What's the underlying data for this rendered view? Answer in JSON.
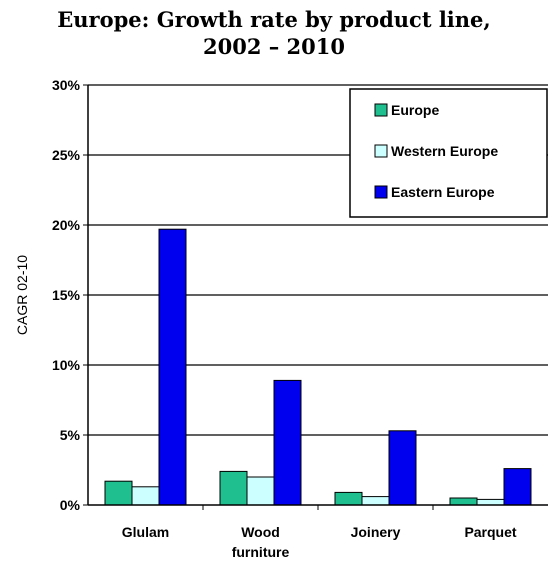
{
  "chart_data": {
    "type": "bar",
    "title_line1": "Europe: Growth rate by product line,",
    "title_line2": "2002 – 2010",
    "xlabel": "",
    "ylabel": "CAGR 02-10",
    "ylim": [
      0,
      30
    ],
    "yticks": [
      "0%",
      "5%",
      "10%",
      "15%",
      "20%",
      "25%",
      "30%"
    ],
    "categories": [
      [
        "Glulam"
      ],
      [
        "Wood",
        "furniture"
      ],
      [
        "Joinery"
      ],
      [
        "Parquet"
      ]
    ],
    "series": [
      {
        "name": "Europe",
        "color": "#1fbf8f",
        "values": [
          1.7,
          2.4,
          0.9,
          0.5
        ]
      },
      {
        "name": "Western Europe",
        "color": "#ccffff",
        "values": [
          1.3,
          2.0,
          0.6,
          0.4
        ]
      },
      {
        "name": "Eastern Europe",
        "color": "#0000ee",
        "values": [
          19.7,
          8.9,
          5.3,
          2.6
        ]
      }
    ],
    "grid": true,
    "legend_position": "top-right"
  }
}
